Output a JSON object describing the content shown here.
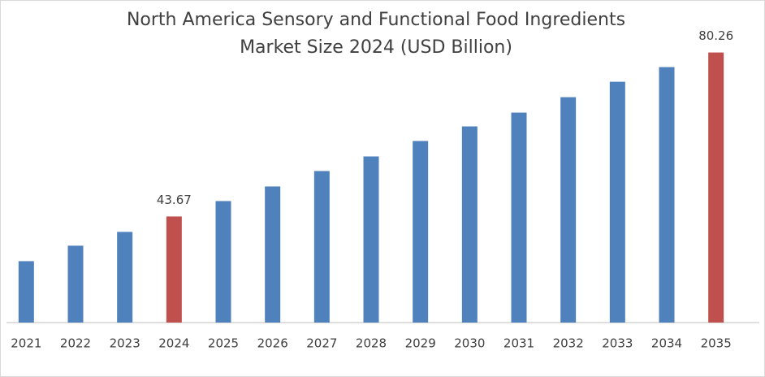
{
  "chart_data": {
    "type": "bar",
    "title": [
      "North America Sensory and Functional Food Ingredients",
      "Market Size 2024 (USD Billion)"
    ],
    "categories": [
      "2021",
      "2022",
      "2023",
      "2024",
      "2025",
      "2026",
      "2027",
      "2028",
      "2029",
      "2030",
      "2031",
      "2032",
      "2033",
      "2034",
      "2035"
    ],
    "values": [
      33.7,
      37.15,
      40.23,
      43.67,
      47.11,
      50.37,
      53.81,
      57.07,
      60.51,
      63.77,
      66.85,
      70.29,
      73.73,
      77.0,
      80.26
    ],
    "value_labels": [
      null,
      null,
      null,
      "43.67",
      null,
      null,
      null,
      null,
      null,
      null,
      null,
      null,
      null,
      null,
      "80.26"
    ],
    "colors": [
      "#4f81bd",
      "#4f81bd",
      "#4f81bd",
      "#c0504d",
      "#4f81bd",
      "#4f81bd",
      "#4f81bd",
      "#4f81bd",
      "#4f81bd",
      "#4f81bd",
      "#4f81bd",
      "#4f81bd",
      "#4f81bd",
      "#4f81bd",
      "#c0504d"
    ],
    "ylim": [
      20,
      82
    ]
  }
}
